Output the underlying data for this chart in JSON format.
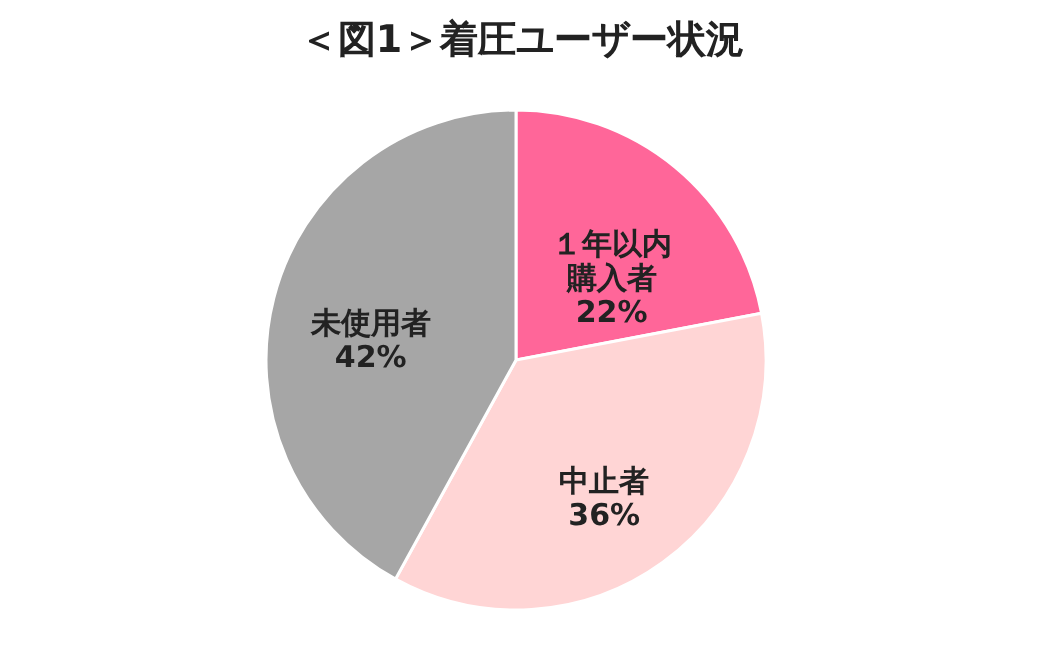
{
  "chart_data": {
    "type": "pie",
    "title": "＜図1＞着圧ユーザー状況",
    "categories": [
      "１年以内購入者",
      "中止者",
      "未使用者"
    ],
    "values": [
      22,
      36,
      42
    ],
    "value_labels": [
      "22%",
      "36%",
      "42%"
    ],
    "colors": [
      "#ff6699",
      "#ffd5d5",
      "#a6a6a6"
    ]
  }
}
